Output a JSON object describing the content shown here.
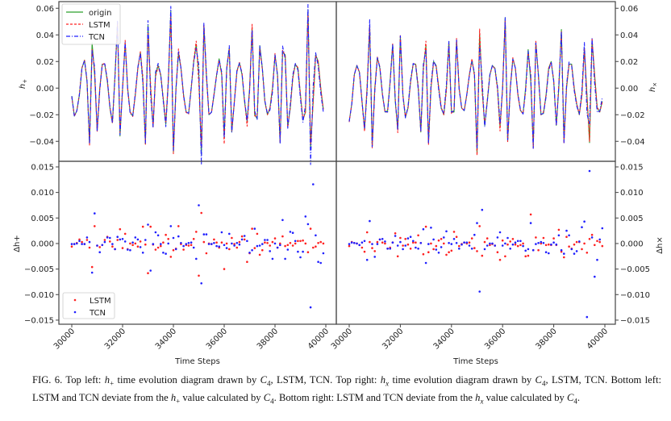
{
  "chart_data": [
    {
      "type": "line",
      "panel": "top-left",
      "ylabel": "h+",
      "x_start": 30000,
      "x_step": 100,
      "n": 100,
      "xlim": [
        29500,
        40200
      ],
      "ylim": [
        -0.055,
        0.065
      ],
      "yticks": [
        -0.04,
        -0.02,
        0.0,
        0.02,
        0.04,
        0.06
      ],
      "ytick_labels": [
        "−0.04",
        "−0.02",
        "0.00",
        "0.02",
        "0.04",
        "0.06"
      ],
      "legend": {
        "placement": "upper-left",
        "entries": [
          "origin",
          "LSTM",
          "TCN"
        ]
      },
      "series": [
        {
          "name": "origin",
          "color": "#2ca02c",
          "style": "solid",
          "values": [
            -0.006,
            -0.021,
            -0.017,
            -0.005,
            0.015,
            0.021,
            0.005,
            -0.042,
            0.034,
            0.01,
            -0.032,
            0,
            0.018,
            0.018,
            0.005,
            -0.015,
            -0.026,
            0.01,
            0.049,
            -0.036,
            0,
            0.034,
            0,
            -0.018,
            -0.021,
            -0.005,
            0.015,
            0.027,
            0.005,
            -0.042,
            0.047,
            0,
            -0.029,
            0.01,
            0.017,
            0.01,
            -0.008,
            -0.027,
            0.005,
            0.058,
            -0.048,
            0,
            0.026,
            0.015,
            -0.005,
            -0.018,
            -0.019,
            0,
            0.02,
            0.033,
            0.01,
            -0.05,
            0.047,
            0.01,
            -0.02,
            -0.018,
            -0.005,
            0.01,
            0.022,
            0.01,
            -0.037,
            0.015,
            0.03,
            -0.033,
            -0.01,
            0.013,
            0.019,
            0.01,
            -0.01,
            -0.025,
            0,
            0.045,
            -0.02,
            -0.023,
            0.032,
            0.015,
            -0.01,
            -0.02,
            -0.015,
            0,
            0.025,
            0.01,
            -0.041,
            0.027,
            0.025,
            -0.029,
            -0.015,
            0.008,
            0.018,
            0.015,
            -0.005,
            -0.024,
            -0.018,
            0.059,
            -0.045,
            -0.01,
            0.025,
            0.02,
            0,
            -0.016
          ]
        },
        {
          "name": "LSTM",
          "color": "#ff2020",
          "style": "dashed",
          "derived_from": "origin + delta LSTM"
        },
        {
          "name": "TCN",
          "color": "#2020ff",
          "style": "dashdot",
          "derived_from": "origin + delta TCN"
        }
      ]
    },
    {
      "type": "line",
      "panel": "top-right",
      "ylabel": "h×",
      "x_start": 30000,
      "x_step": 100,
      "n": 100,
      "xlim": [
        29500,
        40200
      ],
      "ylim": [
        -0.055,
        0.065
      ],
      "yticks": [
        -0.04,
        -0.02,
        0.0,
        0.02,
        0.04,
        0.06
      ],
      "ytick_labels": [
        "−0.04",
        "−0.02",
        "0.00",
        "0.02",
        "0.04",
        "0.06"
      ],
      "series": [
        {
          "name": "origin",
          "color": "#2ca02c",
          "style": "solid",
          "values": [
            -0.025,
            -0.012,
            0.01,
            0.017,
            0.012,
            -0.01,
            -0.031,
            0,
            0.047,
            -0.044,
            0,
            0.023,
            0.015,
            -0.005,
            -0.018,
            -0.017,
            0.005,
            0.033,
            -0.01,
            -0.031,
            0.039,
            -0.005,
            -0.022,
            -0.015,
            0.005,
            0.018,
            0.018,
            0,
            -0.033,
            0.015,
            0.032,
            -0.041,
            0,
            0.02,
            0.017,
            0,
            -0.015,
            -0.02,
            0,
            0.035,
            -0.018,
            -0.018,
            0.036,
            0,
            -0.015,
            -0.017,
            -0.005,
            0.01,
            0.021,
            0.01,
            -0.049,
            0.041,
            0,
            -0.028,
            -0.01,
            0.01,
            0.017,
            0.015,
            0,
            -0.029,
            0,
            0.053,
            -0.04,
            0,
            0.022,
            0.015,
            -0.005,
            -0.017,
            -0.019,
            0,
            0.029,
            0.005,
            -0.044,
            0.034,
            0.01,
            -0.02,
            -0.019,
            -0.005,
            0.015,
            0.02,
            0.005,
            -0.028,
            0,
            0.044,
            -0.039,
            0,
            0.018,
            0.018,
            0,
            -0.012,
            -0.02,
            -0.005,
            0.03,
            -0.005,
            -0.041,
            0.036,
            0.01,
            -0.015,
            -0.018,
            -0.01
          ]
        },
        {
          "name": "LSTM",
          "color": "#ff2020",
          "style": "dashed",
          "derived_from": "origin + delta LSTM"
        },
        {
          "name": "TCN",
          "color": "#2020ff",
          "style": "dashdot",
          "derived_from": "origin + delta TCN"
        }
      ]
    },
    {
      "type": "scatter",
      "panel": "bottom-left",
      "ylabel": "Δh+",
      "xlabel": "Time Steps",
      "x_start": 30000,
      "x_step": 100,
      "n": 100,
      "xlim": [
        29500,
        40200
      ],
      "ylim": [
        -0.0158,
        0.0161
      ],
      "xticks": [
        30000,
        32000,
        34000,
        36000,
        38000,
        40000
      ],
      "xtick_labels": [
        "30000",
        "32000",
        "34000",
        "36000",
        "38000",
        "40000"
      ],
      "yticks": [
        -0.015,
        -0.01,
        -0.005,
        0.0,
        0.005,
        0.01,
        0.015
      ],
      "ytick_labels": [
        "−0.015",
        "−0.010",
        "−0.005",
        "0.000",
        "0.005",
        "0.010",
        "0.015"
      ],
      "legend": {
        "placement": "lower-left",
        "entries": [
          "LSTM",
          "TCN"
        ]
      },
      "series": [
        {
          "name": "LSTM",
          "color": "#ff2020",
          "values": [
            -0.0006,
            -0.0001,
            0.0001,
            0.0008,
            0.0003,
            -0.0001,
            0.0007,
            -0.0008,
            -0.0046,
            0.0034,
            -0.0004,
            -0.0007,
            -0.0003,
            0.0007,
            0.0013,
            0.0004,
            -0.0006,
            -0.0011,
            0.0007,
            0.0028,
            -0.0009,
            0.0019,
            -0.0011,
            0.0,
            -0.0003,
            0.0,
            -0.0006,
            0.0004,
            0.0033,
            -0.0002,
            -0.0058,
            0.0033,
            -0.0002,
            -0.0012,
            -0.0008,
            -0.0005,
            0.0002,
            0.0017,
            0.0009,
            -0.0026,
            -0.0013,
            -0.001,
            0.0034,
            -0.0001,
            -0.0012,
            -0.0003,
            -0.0004,
            -0.0003,
            0.0009,
            0.0023,
            -0.0063,
            0.006,
            0.0003,
            -0.0019,
            0.0,
            -0.0001,
            0.0008,
            0.0002,
            -0.0008,
            0.0002,
            -0.005,
            0.0,
            -0.0011,
            0.0011,
            -0.0001,
            -0.0008,
            0.0003,
            0.0014,
            0.0008,
            -0.0036,
            -0.0019,
            0.0029,
            -0.0009,
            0.0019,
            -0.0022,
            -0.0013,
            0.0002,
            0.0001,
            -0.0004,
            0.0003,
            0.001,
            -0.0008,
            0.0,
            0.0014,
            -0.0005,
            -0.0003,
            0.0001,
            -0.0004,
            0.0,
            0.0005,
            0.0005,
            0.0006,
            0.0,
            -0.0017,
            0.0029,
            -0.0008,
            -0.0006,
            0.0001,
            0.0003,
            0.0
          ]
        },
        {
          "name": "TCN",
          "color": "#2020ff",
          "values": [
            -0.0001,
            -0.0001,
            0.0,
            0.0005,
            -0.0001,
            -0.0001,
            0.0012,
            0.0003,
            -0.0057,
            0.0059,
            -0.0004,
            -0.0017,
            -0.0003,
            0.0003,
            0.0012,
            0.0011,
            -0.0001,
            -0.0011,
            0.0013,
            0.0008,
            0.0009,
            0.0004,
            -0.0012,
            -0.0013,
            0.0002,
            0.0012,
            0.0008,
            -0.0007,
            -0.0018,
            0.0007,
            0.0037,
            -0.0053,
            -0.0001,
            0.0022,
            0.0016,
            -0.0001,
            -0.0018,
            -0.002,
            0.0,
            0.0034,
            0.0011,
            -0.0011,
            0.0014,
            0.0001,
            -0.0005,
            -0.0001,
            0.0001,
            0.0002,
            -0.0008,
            -0.003,
            0.0075,
            -0.0078,
            0.0018,
            0.0018,
            -0.0001,
            -0.0001,
            0.0001,
            -0.0005,
            -0.0006,
            0.0022,
            -0.0003,
            -0.0009,
            0.0019,
            0.0,
            -0.0004,
            0.0001,
            -0.0002,
            0.0008,
            0.0015,
            0.0005,
            -0.0018,
            -0.0013,
            0.0029,
            -0.0005,
            -0.0004,
            -0.0001,
            0.0007,
            0.0007,
            -0.0015,
            -0.003,
            0.0,
            -0.0008,
            -0.0003,
            0.0046,
            -0.003,
            -0.0012,
            0.0023,
            0.0021,
            0.0005,
            -0.0016,
            -0.0027,
            -0.0016,
            0.0053,
            0.0038,
            -0.0125,
            0.0116,
            0.0016,
            -0.0036,
            -0.0038,
            -0.0019
          ]
        }
      ]
    },
    {
      "type": "scatter",
      "panel": "bottom-right",
      "ylabel": "Δh×",
      "xlabel": "Time Steps",
      "x_start": 30000,
      "x_step": 100,
      "n": 100,
      "xlim": [
        29500,
        40200
      ],
      "ylim": [
        -0.0158,
        0.0161
      ],
      "xticks": [
        30000,
        32000,
        34000,
        36000,
        38000,
        40000
      ],
      "xtick_labels": [
        "30000",
        "32000",
        "34000",
        "36000",
        "38000",
        "40000"
      ],
      "yticks": [
        -0.015,
        -0.01,
        -0.005,
        0.0,
        0.005,
        0.01,
        0.015
      ],
      "ytick_labels": [
        "−0.015",
        "−0.010",
        "−0.005",
        "0.000",
        "0.005",
        "0.010",
        "0.015"
      ],
      "series": [
        {
          "name": "LSTM",
          "color": "#ff2020",
          "values": [
            -0.0005,
            0.0003,
            0.0001,
            0.0,
            -0.0003,
            -0.0008,
            -0.0016,
            0.0022,
            0.0003,
            -0.0009,
            -0.0015,
            0.0003,
            0.0008,
            0.0002,
            0.0,
            -0.001,
            -0.0008,
            0.0002,
            0.002,
            -0.0025,
            0.0011,
            -0.0004,
            0.0009,
            -0.0002,
            -0.001,
            0.0002,
            0.0002,
            0.0016,
            0.0001,
            -0.0021,
            0.0033,
            -0.0017,
            0.0,
            -0.0011,
            -0.0005,
            0.0006,
            0.0009,
            0.0,
            -0.0022,
            -0.0017,
            -0.0014,
            0.0023,
            0.0013,
            -0.0005,
            -0.0001,
            0.0002,
            0.0,
            0.0002,
            0.001,
            -0.0009,
            -0.0015,
            0.0034,
            -0.0024,
            0.0003,
            0.001,
            -0.0003,
            -0.0001,
            -0.0004,
            -0.0017,
            -0.0032,
            0.0006,
            -0.0025,
            -0.0002,
            0.0004,
            0.0009,
            -0.0002,
            -0.0005,
            -0.0003,
            0.0,
            -0.0025,
            -0.0024,
            0.0057,
            -0.0013,
            0.0012,
            -0.0013,
            0.0,
            0.0011,
            -0.0003,
            -0.0002,
            -0.0003,
            0.001,
            -0.0003,
            0.0027,
            -0.0016,
            -0.0027,
            0.0013,
            -0.0006,
            -0.001,
            -0.0002,
            0.0003,
            0.0003,
            -0.0011,
            0.0,
            -0.0018,
            0.0009,
            0.0017,
            -0.0003,
            0.0005,
            0.0003,
            -0.0005
          ]
        },
        {
          "name": "TCN",
          "color": "#2020ff",
          "values": [
            -0.0001,
            0.0002,
            0.0001,
            0.0,
            -0.0003,
            0.0002,
            0.0005,
            -0.0032,
            0.0044,
            -0.0001,
            -0.0026,
            -0.0001,
            0.0008,
            0.0009,
            0.0004,
            -0.001,
            -0.001,
            0.0002,
            0.0015,
            -0.0004,
            0.0003,
            -0.0011,
            -0.0004,
            0.001,
            0.0013,
            0.0005,
            -0.0008,
            -0.001,
            0.0001,
            0.0028,
            -0.0038,
            -0.0001,
            0.0031,
            0.0008,
            -0.0012,
            -0.0018,
            -0.0007,
            0.0012,
            0.0024,
            0.0001,
            -0.0001,
            0.0009,
            0.0001,
            -0.001,
            -0.0002,
            0.0002,
            0.0002,
            -0.0004,
            -0.001,
            0.0017,
            0.004,
            -0.0094,
            0.0066,
            -0.0011,
            -0.0004,
            0.0,
            0.0,
            -0.0004,
            0.0012,
            0.0022,
            -0.0004,
            0.0,
            0.0011,
            -0.001,
            -0.0002,
            0.0002,
            0.0005,
            0.0005,
            -0.0005,
            -0.0014,
            -0.0011,
            0.004,
            -0.0013,
            -0.0001,
            0.0001,
            0.0003,
            0.0001,
            -0.0017,
            -0.0019,
            -0.0002,
            0.0002,
            -0.0002,
            0.0016,
            -0.0013,
            -0.002,
            0.0025,
            0.0016,
            -0.0011,
            -0.002,
            -0.0015,
            0.0004,
            0.0032,
            0.0043,
            -0.0144,
            0.0142,
            0.0012,
            -0.0065,
            -0.0032,
            0.0008,
            0.003
          ]
        }
      ]
    }
  ],
  "labels": {
    "h_plus": "h",
    "plus_sub": "+",
    "h_cross": "h",
    "cross_sub": "×",
    "delta": "Δ",
    "xlabel_left": "Time Steps",
    "xlabel_right": "Time Steps",
    "legend_top": [
      "origin",
      "LSTM",
      "TCN"
    ],
    "legend_bottom": [
      "LSTM",
      "TCN"
    ]
  },
  "caption": [
    [
      "FIG. 6.  Top left: ",
      ""
    ],
    [
      "h",
      "i"
    ],
    [
      "+",
      "sub"
    ],
    [
      " time evolution diagram drawn by ",
      ""
    ],
    [
      "C",
      "i"
    ],
    [
      "4",
      "sub"
    ],
    [
      ", LSTM, TCN. Top right: ",
      ""
    ],
    [
      "h",
      "i"
    ],
    [
      "x",
      "subi"
    ],
    [
      " time evolution diagram drawn by ",
      ""
    ],
    [
      "C",
      "i"
    ],
    [
      "4",
      "sub"
    ],
    [
      ", LSTM, TCN. Bottom left: LSTM and TCN deviate from the ",
      ""
    ],
    [
      "h",
      "i"
    ],
    [
      "+",
      "sub"
    ],
    [
      " value calculated by ",
      ""
    ],
    [
      "C",
      "i"
    ],
    [
      "4",
      "sub"
    ],
    [
      ". Bottom right: LSTM and TCN deviate from the ",
      ""
    ],
    [
      "h",
      "i"
    ],
    [
      "x",
      "subi"
    ],
    [
      " value calculated by ",
      ""
    ],
    [
      "C",
      "i"
    ],
    [
      "4",
      "sub"
    ],
    [
      ".",
      ""
    ]
  ]
}
